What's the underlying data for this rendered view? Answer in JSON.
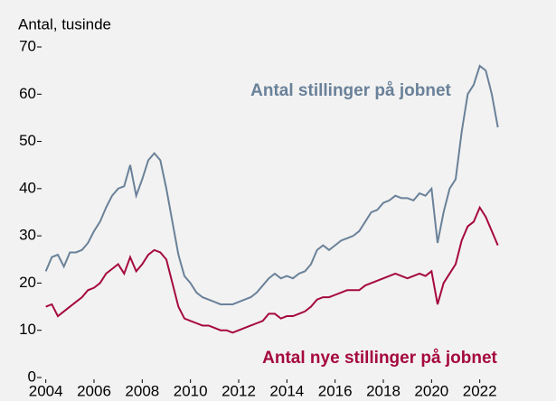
{
  "chart_data": {
    "type": "line",
    "y_label": "Antal, tusinde",
    "annotations": [
      "Antal stillinger på jobnet",
      "Antal nye stillinger på jobnet"
    ],
    "x": [
      2004,
      2004.25,
      2004.5,
      2004.75,
      2005,
      2005.25,
      2005.5,
      2005.75,
      2006,
      2006.25,
      2006.5,
      2006.75,
      2007,
      2007.25,
      2007.5,
      2007.75,
      2008,
      2008.25,
      2008.5,
      2008.75,
      2009,
      2009.25,
      2009.5,
      2009.75,
      2010,
      2010.25,
      2010.5,
      2010.75,
      2011,
      2011.25,
      2011.5,
      2011.75,
      2012,
      2012.25,
      2012.5,
      2012.75,
      2013,
      2013.25,
      2013.5,
      2013.75,
      2014,
      2014.25,
      2014.5,
      2014.75,
      2015,
      2015.25,
      2015.5,
      2015.75,
      2016,
      2016.25,
      2016.5,
      2016.75,
      2017,
      2017.25,
      2017.5,
      2017.75,
      2018,
      2018.25,
      2018.5,
      2018.75,
      2019,
      2019.25,
      2019.5,
      2019.75,
      2020,
      2020.25,
      2020.5,
      2020.75,
      2021,
      2021.25,
      2021.5,
      2021.75,
      2022,
      2022.25,
      2022.5,
      2022.75
    ],
    "series": [
      {
        "name": "Antal stillinger på jobnet",
        "color": "#6a8199",
        "values": [
          22.5,
          25.5,
          26,
          23.5,
          26.5,
          26.5,
          27,
          28.5,
          31,
          33,
          36,
          38.5,
          40,
          40.5,
          45,
          38.5,
          42,
          46,
          47.5,
          46,
          40,
          33,
          26,
          21.5,
          20,
          18,
          17,
          16.5,
          16,
          15.5,
          15.5,
          15.5,
          16,
          16.5,
          17,
          18,
          19.5,
          21,
          22,
          21,
          21.5,
          21,
          22,
          22.5,
          24,
          27,
          28,
          27,
          28,
          29,
          29.5,
          30,
          31,
          33,
          35,
          35.5,
          37,
          37.5,
          38.5,
          38,
          38,
          37.5,
          39,
          38.5,
          40,
          28.5,
          35,
          40,
          42,
          52,
          60,
          62,
          66,
          65,
          60,
          53
        ]
      },
      {
        "name": "Antal nye stillinger på jobnet",
        "color": "#a5093e",
        "values": [
          15,
          15.5,
          13,
          14,
          15,
          16,
          17,
          18.5,
          19,
          20,
          22,
          23,
          24,
          22,
          25.5,
          22.5,
          24,
          26,
          27,
          26.5,
          25,
          20,
          15,
          12.5,
          12,
          11.5,
          11,
          11,
          10.5,
          10,
          10,
          9.5,
          10,
          10.5,
          11,
          11.5,
          12,
          13.5,
          13.5,
          12.5,
          13,
          13,
          13.5,
          14,
          15,
          16.5,
          17,
          17,
          17.5,
          18,
          18.5,
          18.5,
          18.5,
          19.5,
          20,
          20.5,
          21,
          21.5,
          22,
          21.5,
          21,
          21.5,
          22,
          21.5,
          22.5,
          15.5,
          20,
          22,
          24,
          29,
          32,
          33,
          36,
          34,
          31,
          28
        ]
      }
    ],
    "xlim": [
      2003.9,
      2023.1
    ],
    "xticks": [
      2004,
      2006,
      2008,
      2010,
      2012,
      2014,
      2016,
      2018,
      2020,
      2022
    ],
    "ylim": [
      0,
      70
    ],
    "yticks": [
      0,
      10,
      20,
      30,
      40,
      50,
      60,
      70
    ],
    "grid": false
  }
}
